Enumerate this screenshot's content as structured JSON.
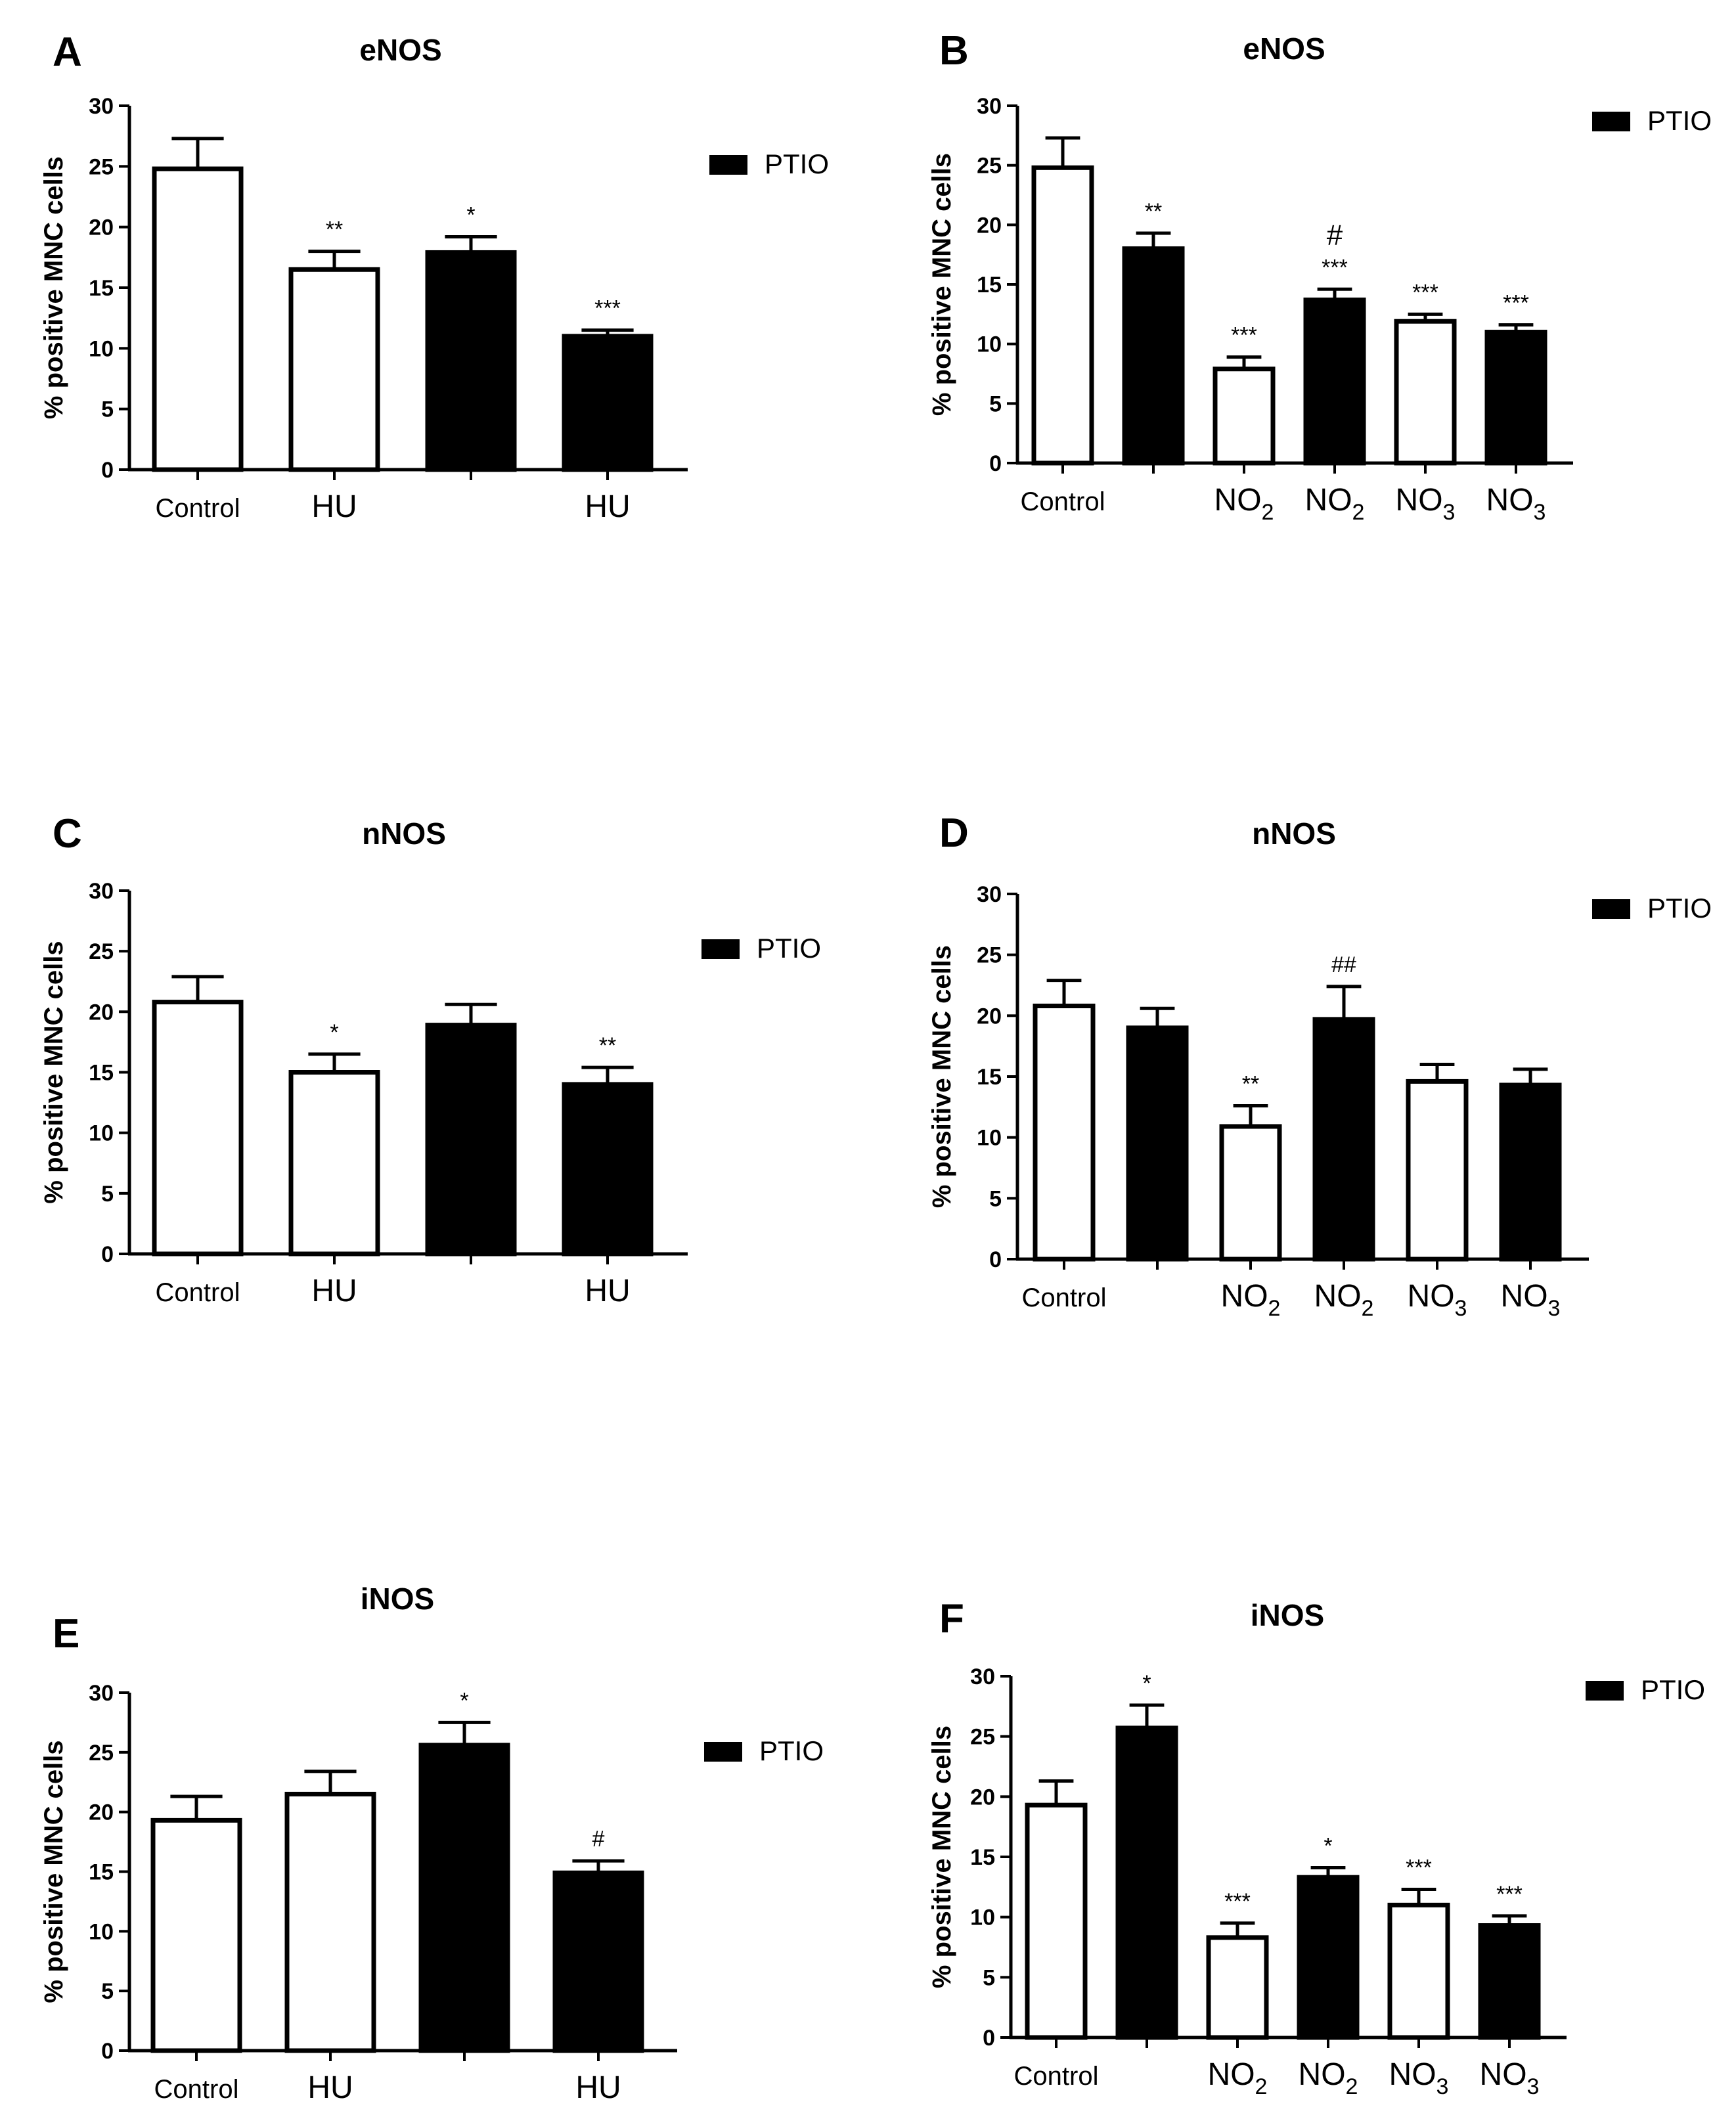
{
  "figure": {
    "y_axis_label": "% positive MNC cells",
    "legend_label": "PTIO",
    "colors": {
      "open_bar": "#ffffff",
      "filled_bar": "#000000",
      "axis": "#000000"
    }
  },
  "chart_data": [
    {
      "panel": "A",
      "type": "bar",
      "title": "eNOS",
      "ylabel": "% positive MNC cells",
      "ylim": [
        0,
        30
      ],
      "yticks": [
        0,
        5,
        10,
        15,
        20,
        25,
        30
      ],
      "categories": [
        "Control",
        "HU",
        "",
        "HU"
      ],
      "subscripts": [
        "",
        "",
        "",
        ""
      ],
      "fill": [
        "open",
        "open",
        "filled",
        "filled"
      ],
      "values": [
        24.8,
        16.5,
        17.9,
        11.0
      ],
      "errors": [
        2.5,
        1.5,
        1.3,
        0.5
      ],
      "annotations": [
        [
          "",
          ""
        ],
        [
          "**",
          ""
        ],
        [
          "*",
          ""
        ],
        [
          "***",
          ""
        ]
      ],
      "legend": "PTIO"
    },
    {
      "panel": "B",
      "type": "bar",
      "title": "eNOS",
      "ylabel": "% positive MNC cells",
      "ylim": [
        0,
        30
      ],
      "yticks": [
        0,
        5,
        10,
        15,
        20,
        25,
        30
      ],
      "categories": [
        "Control",
        "",
        "NO",
        "NO",
        "NO",
        "NO"
      ],
      "subscripts": [
        "",
        "",
        "2",
        "2",
        "3",
        "3"
      ],
      "fill": [
        "open",
        "filled",
        "open",
        "filled",
        "open",
        "filled"
      ],
      "values": [
        24.8,
        18.0,
        7.9,
        13.7,
        11.9,
        11.0
      ],
      "errors": [
        2.5,
        1.3,
        1.0,
        0.9,
        0.6,
        0.6
      ],
      "annotations": [
        [
          "",
          ""
        ],
        [
          "**",
          ""
        ],
        [
          "***",
          ""
        ],
        [
          "***",
          "#"
        ],
        [
          "***",
          ""
        ],
        [
          "***",
          ""
        ]
      ],
      "legend": "PTIO"
    },
    {
      "panel": "C",
      "type": "bar",
      "title": "nNOS",
      "ylabel": "% positive MNC cells",
      "ylim": [
        0,
        30
      ],
      "yticks": [
        0,
        5,
        10,
        15,
        20,
        25,
        30
      ],
      "categories": [
        "Control",
        "HU",
        "",
        "HU"
      ],
      "subscripts": [
        "",
        "",
        "",
        ""
      ],
      "fill": [
        "open",
        "open",
        "filled",
        "filled"
      ],
      "values": [
        20.8,
        15.0,
        18.9,
        14.0
      ],
      "errors": [
        2.1,
        1.5,
        1.7,
        1.4
      ],
      "annotations": [
        [
          "",
          ""
        ],
        [
          "*",
          ""
        ],
        [
          "",
          ""
        ],
        [
          "**",
          ""
        ]
      ],
      "legend": "PTIO"
    },
    {
      "panel": "D",
      "type": "bar",
      "title": "nNOS",
      "ylabel": "% positive MNC cells",
      "ylim": [
        0,
        30
      ],
      "yticks": [
        0,
        5,
        10,
        15,
        20,
        25,
        30
      ],
      "categories": [
        "Control",
        "",
        "NO",
        "NO",
        "NO",
        "NO"
      ],
      "subscripts": [
        "",
        "",
        "2",
        "2",
        "3",
        "3"
      ],
      "fill": [
        "open",
        "filled",
        "open",
        "filled",
        "open",
        "filled"
      ],
      "values": [
        20.8,
        19.0,
        10.9,
        19.7,
        14.6,
        14.3
      ],
      "errors": [
        2.1,
        1.6,
        1.7,
        2.7,
        1.4,
        1.3
      ],
      "annotations": [
        [
          "",
          ""
        ],
        [
          "",
          ""
        ],
        [
          "**",
          ""
        ],
        [
          "##",
          ""
        ],
        [
          "",
          ""
        ],
        [
          "",
          ""
        ]
      ],
      "legend": "PTIO"
    },
    {
      "panel": "E",
      "type": "bar",
      "title": "iNOS",
      "ylabel": "% positive MNC cells",
      "ylim": [
        0,
        30
      ],
      "yticks": [
        0,
        5,
        10,
        15,
        20,
        25,
        30
      ],
      "categories": [
        "Control",
        "HU",
        "",
        "HU"
      ],
      "subscripts": [
        "",
        "",
        "",
        ""
      ],
      "fill": [
        "open",
        "open",
        "filled",
        "filled"
      ],
      "values": [
        19.3,
        21.5,
        25.6,
        14.9
      ],
      "errors": [
        2.0,
        1.9,
        1.9,
        1.0
      ],
      "annotations": [
        [
          "",
          ""
        ],
        [
          "",
          ""
        ],
        [
          "*",
          ""
        ],
        [
          "#",
          ""
        ]
      ],
      "legend": "PTIO"
    },
    {
      "panel": "F",
      "type": "bar",
      "title": "iNOS",
      "ylabel": "% positive MNC cells",
      "ylim": [
        0,
        30
      ],
      "yticks": [
        0,
        5,
        10,
        15,
        20,
        25,
        30
      ],
      "categories": [
        "Control",
        "",
        "NO",
        "NO",
        "NO",
        "NO"
      ],
      "subscripts": [
        "",
        "",
        "2",
        "2",
        "3",
        "3"
      ],
      "fill": [
        "open",
        "filled",
        "open",
        "filled",
        "open",
        "filled"
      ],
      "values": [
        19.3,
        25.7,
        8.3,
        13.3,
        11.0,
        9.3
      ],
      "errors": [
        2.0,
        1.9,
        1.2,
        0.8,
        1.3,
        0.8
      ],
      "annotations": [
        [
          "",
          ""
        ],
        [
          "*",
          ""
        ],
        [
          "***",
          ""
        ],
        [
          "*",
          ""
        ],
        [
          "***",
          ""
        ],
        [
          "***",
          ""
        ]
      ],
      "legend": "PTIO"
    }
  ]
}
